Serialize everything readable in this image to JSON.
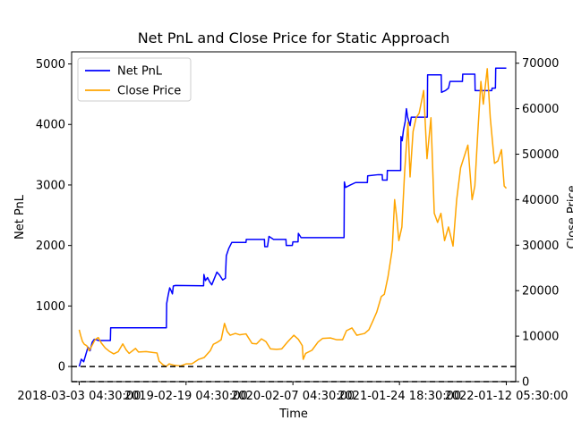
{
  "chart_data": {
    "type": "line",
    "title": "Net PnL and Close Price for Static Approach",
    "xlabel": "Time",
    "ylabel_left": "Net PnL",
    "ylabel_right": "Close Price",
    "x_tick_labels": [
      "2018-03-03 04:30:00",
      "2019-02-19 04:30:00",
      "2020-02-07 04:30:00",
      "2021-01-24 18:30:00",
      "2022-01-12 05:30:00"
    ],
    "x_tick_dates": [
      "2018-03-03",
      "2019-02-19",
      "2020-02-07",
      "2021-01-24",
      "2022-01-12"
    ],
    "x_range": [
      "2018-02-06",
      "2022-02-12"
    ],
    "y_left_ticks": [
      0,
      1000,
      2000,
      3000,
      4000,
      5000
    ],
    "y_left_range": [
      -250,
      5200
    ],
    "y_right_ticks": [
      0,
      10000,
      20000,
      30000,
      40000,
      50000,
      60000,
      70000
    ],
    "y_right_range": [
      0,
      72500
    ],
    "grid": false,
    "legend_position": "upper left",
    "reference_lines": [
      {
        "axis": "left",
        "y": 0,
        "style": "dashed",
        "color": "#000000"
      },
      {
        "axis": "right",
        "y": 0,
        "style": "dashed",
        "color": "#000000"
      }
    ],
    "series": [
      {
        "name": "Net PnL",
        "axis": "left",
        "color": "#0000ff",
        "points": [
          [
            "2018-03-03",
            0
          ],
          [
            "2018-03-10",
            120
          ],
          [
            "2018-03-18",
            80
          ],
          [
            "2018-03-25",
            200
          ],
          [
            "2018-04-01",
            320
          ],
          [
            "2018-04-08",
            260
          ],
          [
            "2018-04-15",
            400
          ],
          [
            "2018-04-22",
            450
          ],
          [
            "2018-05-01",
            440
          ],
          [
            "2018-05-05",
            430
          ],
          [
            "2018-06-14",
            430
          ],
          [
            "2018-06-15",
            640
          ],
          [
            "2018-12-16",
            640
          ],
          [
            "2018-12-17",
            1040
          ],
          [
            "2018-12-22",
            1180
          ],
          [
            "2018-12-27",
            1300
          ],
          [
            "2019-01-01",
            1250
          ],
          [
            "2019-01-05",
            1200
          ],
          [
            "2019-01-08",
            1330
          ],
          [
            "2019-01-15",
            1340
          ],
          [
            "2019-04-18",
            1335
          ],
          [
            "2019-04-19",
            1520
          ],
          [
            "2019-04-24",
            1420
          ],
          [
            "2019-05-01",
            1470
          ],
          [
            "2019-05-08",
            1400
          ],
          [
            "2019-05-15",
            1350
          ],
          [
            "2019-06-01",
            1560
          ],
          [
            "2019-06-10",
            1510
          ],
          [
            "2019-06-20",
            1430
          ],
          [
            "2019-06-29",
            1460
          ],
          [
            "2019-07-02",
            1830
          ],
          [
            "2019-07-10",
            1950
          ],
          [
            "2019-07-20",
            2050
          ],
          [
            "2019-09-05",
            2050
          ],
          [
            "2019-09-06",
            2100
          ],
          [
            "2019-11-05",
            2100
          ],
          [
            "2019-11-06",
            1980
          ],
          [
            "2019-11-15",
            1980
          ],
          [
            "2019-11-20",
            2150
          ],
          [
            "2019-12-05",
            2100
          ],
          [
            "2020-01-15",
            2100
          ],
          [
            "2020-01-16",
            2000
          ],
          [
            "2020-02-05",
            2000
          ],
          [
            "2020-02-07",
            2060
          ],
          [
            "2020-02-24",
            2060
          ],
          [
            "2020-02-25",
            2200
          ],
          [
            "2020-03-05",
            2130
          ],
          [
            "2020-07-25",
            2130
          ],
          [
            "2020-07-26",
            3050
          ],
          [
            "2020-07-30",
            2960
          ],
          [
            "2020-08-15",
            3000
          ],
          [
            "2020-09-01",
            3040
          ],
          [
            "2020-10-10",
            3040
          ],
          [
            "2020-10-11",
            3150
          ],
          [
            "2020-11-15",
            3170
          ],
          [
            "2020-11-28",
            3170
          ],
          [
            "2020-11-29",
            3080
          ],
          [
            "2020-12-14",
            3080
          ],
          [
            "2020-12-15",
            3240
          ],
          [
            "2021-01-28",
            3240
          ],
          [
            "2021-01-29",
            3800
          ],
          [
            "2021-02-02",
            3730
          ],
          [
            "2021-02-06",
            3900
          ],
          [
            "2021-02-12",
            4050
          ],
          [
            "2021-02-16",
            4260
          ],
          [
            "2021-02-20",
            4120
          ],
          [
            "2021-02-28",
            3980
          ],
          [
            "2021-03-04",
            4120
          ],
          [
            "2021-04-26",
            4120
          ],
          [
            "2021-04-27",
            4820
          ],
          [
            "2021-06-11",
            4820
          ],
          [
            "2021-06-12",
            4530
          ],
          [
            "2021-06-25",
            4560
          ],
          [
            "2021-07-05",
            4600
          ],
          [
            "2021-07-10",
            4710
          ],
          [
            "2021-08-20",
            4710
          ],
          [
            "2021-08-21",
            4830
          ],
          [
            "2021-09-30",
            4830
          ],
          [
            "2021-10-01",
            4560
          ],
          [
            "2021-11-25",
            4560
          ],
          [
            "2021-11-26",
            4600
          ],
          [
            "2021-12-07",
            4600
          ],
          [
            "2021-12-08",
            4930
          ],
          [
            "2022-01-12",
            4930
          ]
        ]
      },
      {
        "name": "Close Price",
        "axis": "right",
        "color": "#ffa500",
        "points": [
          [
            "2018-03-03",
            11400
          ],
          [
            "2018-03-08",
            10100
          ],
          [
            "2018-03-14",
            8800
          ],
          [
            "2018-03-20",
            8200
          ],
          [
            "2018-03-28",
            7900
          ],
          [
            "2018-04-05",
            6800
          ],
          [
            "2018-04-14",
            7900
          ],
          [
            "2018-04-24",
            9200
          ],
          [
            "2018-05-05",
            9700
          ],
          [
            "2018-05-15",
            8500
          ],
          [
            "2018-05-28",
            7400
          ],
          [
            "2018-06-12",
            6600
          ],
          [
            "2018-06-25",
            6100
          ],
          [
            "2018-07-10",
            6600
          ],
          [
            "2018-07-25",
            8300
          ],
          [
            "2018-08-05",
            7000
          ],
          [
            "2018-08-15",
            6200
          ],
          [
            "2018-09-05",
            7300
          ],
          [
            "2018-09-15",
            6500
          ],
          [
            "2018-10-10",
            6600
          ],
          [
            "2018-11-01",
            6400
          ],
          [
            "2018-11-15",
            6300
          ],
          [
            "2018-11-22",
            4500
          ],
          [
            "2018-12-05",
            3700
          ],
          [
            "2018-12-15",
            3300
          ],
          [
            "2018-12-25",
            3900
          ],
          [
            "2019-01-10",
            3600
          ],
          [
            "2019-02-01",
            3450
          ],
          [
            "2019-02-19",
            3900
          ],
          [
            "2019-03-10",
            3900
          ],
          [
            "2019-04-02",
            4900
          ],
          [
            "2019-04-20",
            5300
          ],
          [
            "2019-05-10",
            6800
          ],
          [
            "2019-05-20",
            8200
          ],
          [
            "2019-06-01",
            8600
          ],
          [
            "2019-06-15",
            9200
          ],
          [
            "2019-06-26",
            12800
          ],
          [
            "2019-07-05",
            11000
          ],
          [
            "2019-07-15",
            10200
          ],
          [
            "2019-08-01",
            10600
          ],
          [
            "2019-08-15",
            10300
          ],
          [
            "2019-09-05",
            10500
          ],
          [
            "2019-09-25",
            8400
          ],
          [
            "2019-10-10",
            8300
          ],
          [
            "2019-10-26",
            9400
          ],
          [
            "2019-11-10",
            8800
          ],
          [
            "2019-11-25",
            7200
          ],
          [
            "2019-12-15",
            7100
          ],
          [
            "2020-01-01",
            7200
          ],
          [
            "2020-01-20",
            8700
          ],
          [
            "2020-02-10",
            10200
          ],
          [
            "2020-02-25",
            9300
          ],
          [
            "2020-03-09",
            7900
          ],
          [
            "2020-03-12",
            4900
          ],
          [
            "2020-03-20",
            6200
          ],
          [
            "2020-04-10",
            6900
          ],
          [
            "2020-04-30",
            8700
          ],
          [
            "2020-05-15",
            9500
          ],
          [
            "2020-06-10",
            9600
          ],
          [
            "2020-07-01",
            9200
          ],
          [
            "2020-07-20",
            9200
          ],
          [
            "2020-08-02",
            11200
          ],
          [
            "2020-08-20",
            11800
          ],
          [
            "2020-09-05",
            10200
          ],
          [
            "2020-10-01",
            10600
          ],
          [
            "2020-10-15",
            11400
          ],
          [
            "2020-10-28",
            13300
          ],
          [
            "2020-11-10",
            15300
          ],
          [
            "2020-11-25",
            18700
          ],
          [
            "2020-12-05",
            19200
          ],
          [
            "2020-12-17",
            23000
          ],
          [
            "2020-12-31",
            29000
          ],
          [
            "2021-01-08",
            40000
          ],
          [
            "2021-01-15",
            36000
          ],
          [
            "2021-01-22",
            31000
          ],
          [
            "2021-02-01",
            34000
          ],
          [
            "2021-02-10",
            46000
          ],
          [
            "2021-02-21",
            57000
          ],
          [
            "2021-02-28",
            45000
          ],
          [
            "2021-03-10",
            55000
          ],
          [
            "2021-03-20",
            58000
          ],
          [
            "2021-03-30",
            59000
          ],
          [
            "2021-04-14",
            64000
          ],
          [
            "2021-04-25",
            49000
          ],
          [
            "2021-05-08",
            58000
          ],
          [
            "2021-05-19",
            37000
          ],
          [
            "2021-05-30",
            35000
          ],
          [
            "2021-06-10",
            37000
          ],
          [
            "2021-06-22",
            31000
          ],
          [
            "2021-07-05",
            34000
          ],
          [
            "2021-07-20",
            29800
          ],
          [
            "2021-08-01",
            40000
          ],
          [
            "2021-08-14",
            47000
          ],
          [
            "2021-09-07",
            52000
          ],
          [
            "2021-09-21",
            40000
          ],
          [
            "2021-09-30",
            43000
          ],
          [
            "2021-10-10",
            55000
          ],
          [
            "2021-10-20",
            66000
          ],
          [
            "2021-10-28",
            61000
          ],
          [
            "2021-11-10",
            68800
          ],
          [
            "2021-11-20",
            58000
          ],
          [
            "2021-12-04",
            48000
          ],
          [
            "2021-12-15",
            48500
          ],
          [
            "2021-12-27",
            51000
          ],
          [
            "2022-01-05",
            43000
          ],
          [
            "2022-01-12",
            42500
          ]
        ]
      }
    ]
  }
}
